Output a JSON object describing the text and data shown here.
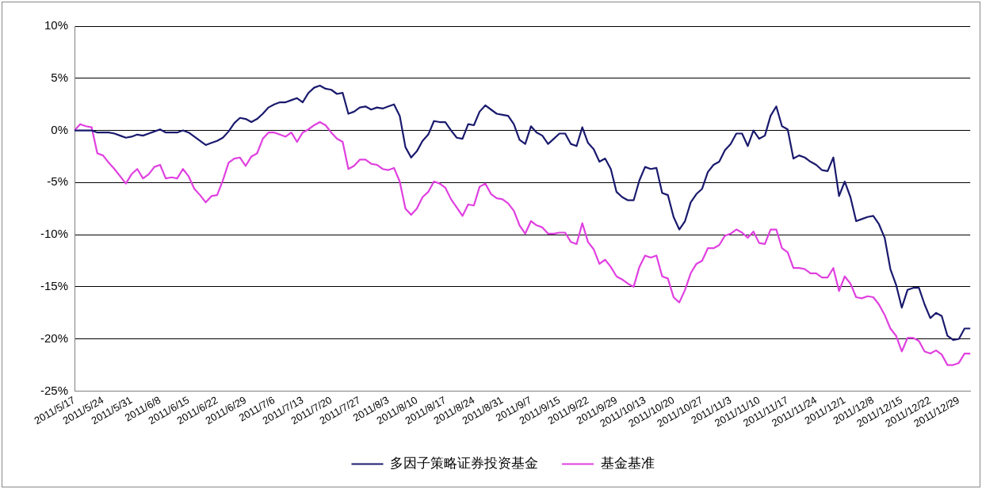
{
  "chart_data": {
    "type": "line",
    "categories": [
      "2011/5/17",
      null,
      null,
      null,
      null,
      "2011/5/24",
      null,
      null,
      null,
      null,
      "2011/5/31",
      null,
      null,
      null,
      null,
      "2011/6/8",
      null,
      null,
      null,
      null,
      "2011/6/15",
      null,
      null,
      null,
      null,
      "2011/6/22",
      null,
      null,
      null,
      null,
      "2011/6/29",
      null,
      null,
      null,
      null,
      "2011/7/6",
      null,
      null,
      null,
      null,
      "2011/7/13",
      null,
      null,
      null,
      null,
      "2011/7/20",
      null,
      null,
      null,
      null,
      "2011/7/27",
      null,
      null,
      null,
      null,
      "2011/8/3",
      null,
      null,
      null,
      null,
      "2011/8/10",
      null,
      null,
      null,
      null,
      "2011/8/17",
      null,
      null,
      null,
      null,
      "2011/8/24",
      null,
      null,
      null,
      null,
      "2011/8/31",
      null,
      null,
      null,
      null,
      "2011/9/7",
      null,
      null,
      null,
      null,
      "2011/9/15",
      null,
      null,
      null,
      null,
      "2011/9/22",
      null,
      null,
      null,
      null,
      "2011/9/29",
      null,
      null,
      null,
      null,
      "2011/10/13",
      null,
      null,
      null,
      null,
      "2011/10/20",
      null,
      null,
      null,
      null,
      "2011/10/27",
      null,
      null,
      null,
      null,
      "2011/11/3",
      null,
      null,
      null,
      null,
      "2011/11/10",
      null,
      null,
      null,
      null,
      "2011/11/17",
      null,
      null,
      null,
      null,
      "2011/11/24",
      null,
      null,
      null,
      null,
      "2011/12/1",
      null,
      null,
      null,
      null,
      "2011/12/8",
      null,
      null,
      null,
      null,
      "2011/12/15",
      null,
      null,
      null,
      null,
      "2011/12/22",
      null,
      null,
      null,
      null,
      "2011/12/29",
      null,
      null
    ],
    "series": [
      {
        "name": "多因子策略证券投资基金",
        "color": "#1a1a6e",
        "values": [
          0,
          0,
          0,
          0,
          -0.2,
          -0.2,
          -0.2,
          -0.3,
          -0.5,
          -0.7,
          -0.6,
          -0.4,
          -0.5,
          -0.3,
          -0.1,
          0.1,
          -0.2,
          -0.2,
          -0.2,
          0,
          -0.2,
          -0.6,
          -1,
          -1.4,
          -1.2,
          -1,
          -0.7,
          -0.1,
          0.7,
          1.2,
          1.1,
          0.8,
          1.1,
          1.6,
          2.2,
          2.5,
          2.7,
          2.7,
          2.9,
          3.1,
          2.7,
          3.6,
          4.1,
          4.3,
          4,
          3.9,
          3.5,
          3.6,
          1.6,
          1.8,
          2.2,
          2.3,
          2,
          2.2,
          2.1,
          2.3,
          2.5,
          1.4,
          -1.6,
          -2.6,
          -2,
          -1,
          -0.4,
          0.9,
          0.8,
          0.8,
          0,
          -0.7,
          -0.8,
          0.6,
          0.5,
          1.8,
          2.4,
          2,
          1.6,
          1.5,
          1.4,
          0.6,
          -0.9,
          -1.3,
          0.4,
          -0.2,
          -0.5,
          -1.3,
          -0.8,
          -0.3,
          -0.3,
          -1.3,
          -1.5,
          0.3,
          -1.2,
          -1.8,
          -3,
          -2.7,
          -3.7,
          -5.9,
          -6.4,
          -6.7,
          -6.7,
          -4.8,
          -3.5,
          -3.7,
          -3.6,
          -6,
          -6.2,
          -8.3,
          -9.5,
          -8.7,
          -6.9,
          -6.1,
          -5.6,
          -4,
          -3.3,
          -3,
          -1.9,
          -1.3,
          -0.3,
          -0.3,
          -1.5,
          0,
          -0.8,
          -0.5,
          1.4,
          2.3,
          0.4,
          0.1,
          -2.7,
          -2.4,
          -2.6,
          -3,
          -3.3,
          -3.8,
          -3.9,
          -2.6,
          -6.3,
          -4.9,
          -6.4,
          -8.7,
          -8.5,
          -8.3,
          -8.2,
          -9,
          -10.3,
          -13.3,
          -14.8,
          -17,
          -15.3,
          -15.1,
          -15.1,
          -16.7,
          -18,
          -17.5,
          -17.8,
          -19.7,
          -20.1,
          -20,
          -19,
          -19
        ]
      },
      {
        "name": "基金基准",
        "color": "#e040e0",
        "values": [
          0,
          0.6,
          0.4,
          0.3,
          -2.2,
          -2.4,
          -3.1,
          -3.7,
          -4.4,
          -5.1,
          -4.2,
          -3.7,
          -4.6,
          -4.2,
          -3.5,
          -3.3,
          -4.6,
          -4.5,
          -4.6,
          -3.7,
          -4.4,
          -5.6,
          -6.2,
          -6.9,
          -6.3,
          -6.2,
          -4.8,
          -3.1,
          -2.7,
          -2.6,
          -3.4,
          -2.5,
          -2.2,
          -0.8,
          -0.2,
          -0.2,
          -0.4,
          -0.6,
          -0.2,
          -1.1,
          -0.2,
          0.1,
          0.5,
          0.8,
          0.5,
          -0.2,
          -0.8,
          -1.1,
          -3.7,
          -3.4,
          -2.8,
          -2.8,
          -3.2,
          -3.3,
          -3.7,
          -3.8,
          -3.6,
          -4.9,
          -7.5,
          -8.1,
          -7.5,
          -6.4,
          -5.9,
          -4.9,
          -5.1,
          -5.5,
          -6.6,
          -7.4,
          -8.2,
          -7.1,
          -7.2,
          -5.4,
          -5.1,
          -6.1,
          -6.5,
          -6.6,
          -7,
          -7.7,
          -9.1,
          -9.9,
          -8.7,
          -9.1,
          -9.3,
          -9.9,
          -9.9,
          -9.8,
          -9.8,
          -10.7,
          -10.9,
          -8.9,
          -10.7,
          -11.4,
          -12.8,
          -12.4,
          -13.1,
          -14,
          -14.3,
          -14.7,
          -15,
          -13.1,
          -12,
          -12.2,
          -12,
          -14,
          -14.2,
          -16,
          -16.5,
          -15.3,
          -13.7,
          -12.8,
          -12.5,
          -11.3,
          -11.3,
          -11,
          -10.1,
          -9.9,
          -9.5,
          -9.8,
          -10.3,
          -9.7,
          -10.8,
          -10.9,
          -9.5,
          -9.5,
          -11.3,
          -11.7,
          -13.2,
          -13.2,
          -13.3,
          -13.7,
          -13.7,
          -14.1,
          -14.1,
          -13.2,
          -15.4,
          -14,
          -14.7,
          -16,
          -16.1,
          -15.9,
          -16,
          -16.7,
          -17.7,
          -19,
          -19.7,
          -21.2,
          -19.9,
          -19.9,
          -20.2,
          -21.2,
          -21.4,
          -21.1,
          -21.5,
          -22.5,
          -22.5,
          -22.3,
          -21.4,
          -21.4
        ]
      }
    ],
    "ylim": [
      -25,
      10
    ],
    "yticks": [
      {
        "value": -25,
        "label": "-25%"
      },
      {
        "value": -20,
        "label": "-20%"
      },
      {
        "value": -15,
        "label": "-15%"
      },
      {
        "value": -10,
        "label": "-10%"
      },
      {
        "value": -5,
        "label": "-5%"
      },
      {
        "value": 0,
        "label": "0%"
      },
      {
        "value": 5,
        "label": "5%"
      },
      {
        "value": 10,
        "label": "10%"
      }
    ],
    "grid": "y",
    "legend": "bottom",
    "marker": "none",
    "line_style": "solid"
  }
}
